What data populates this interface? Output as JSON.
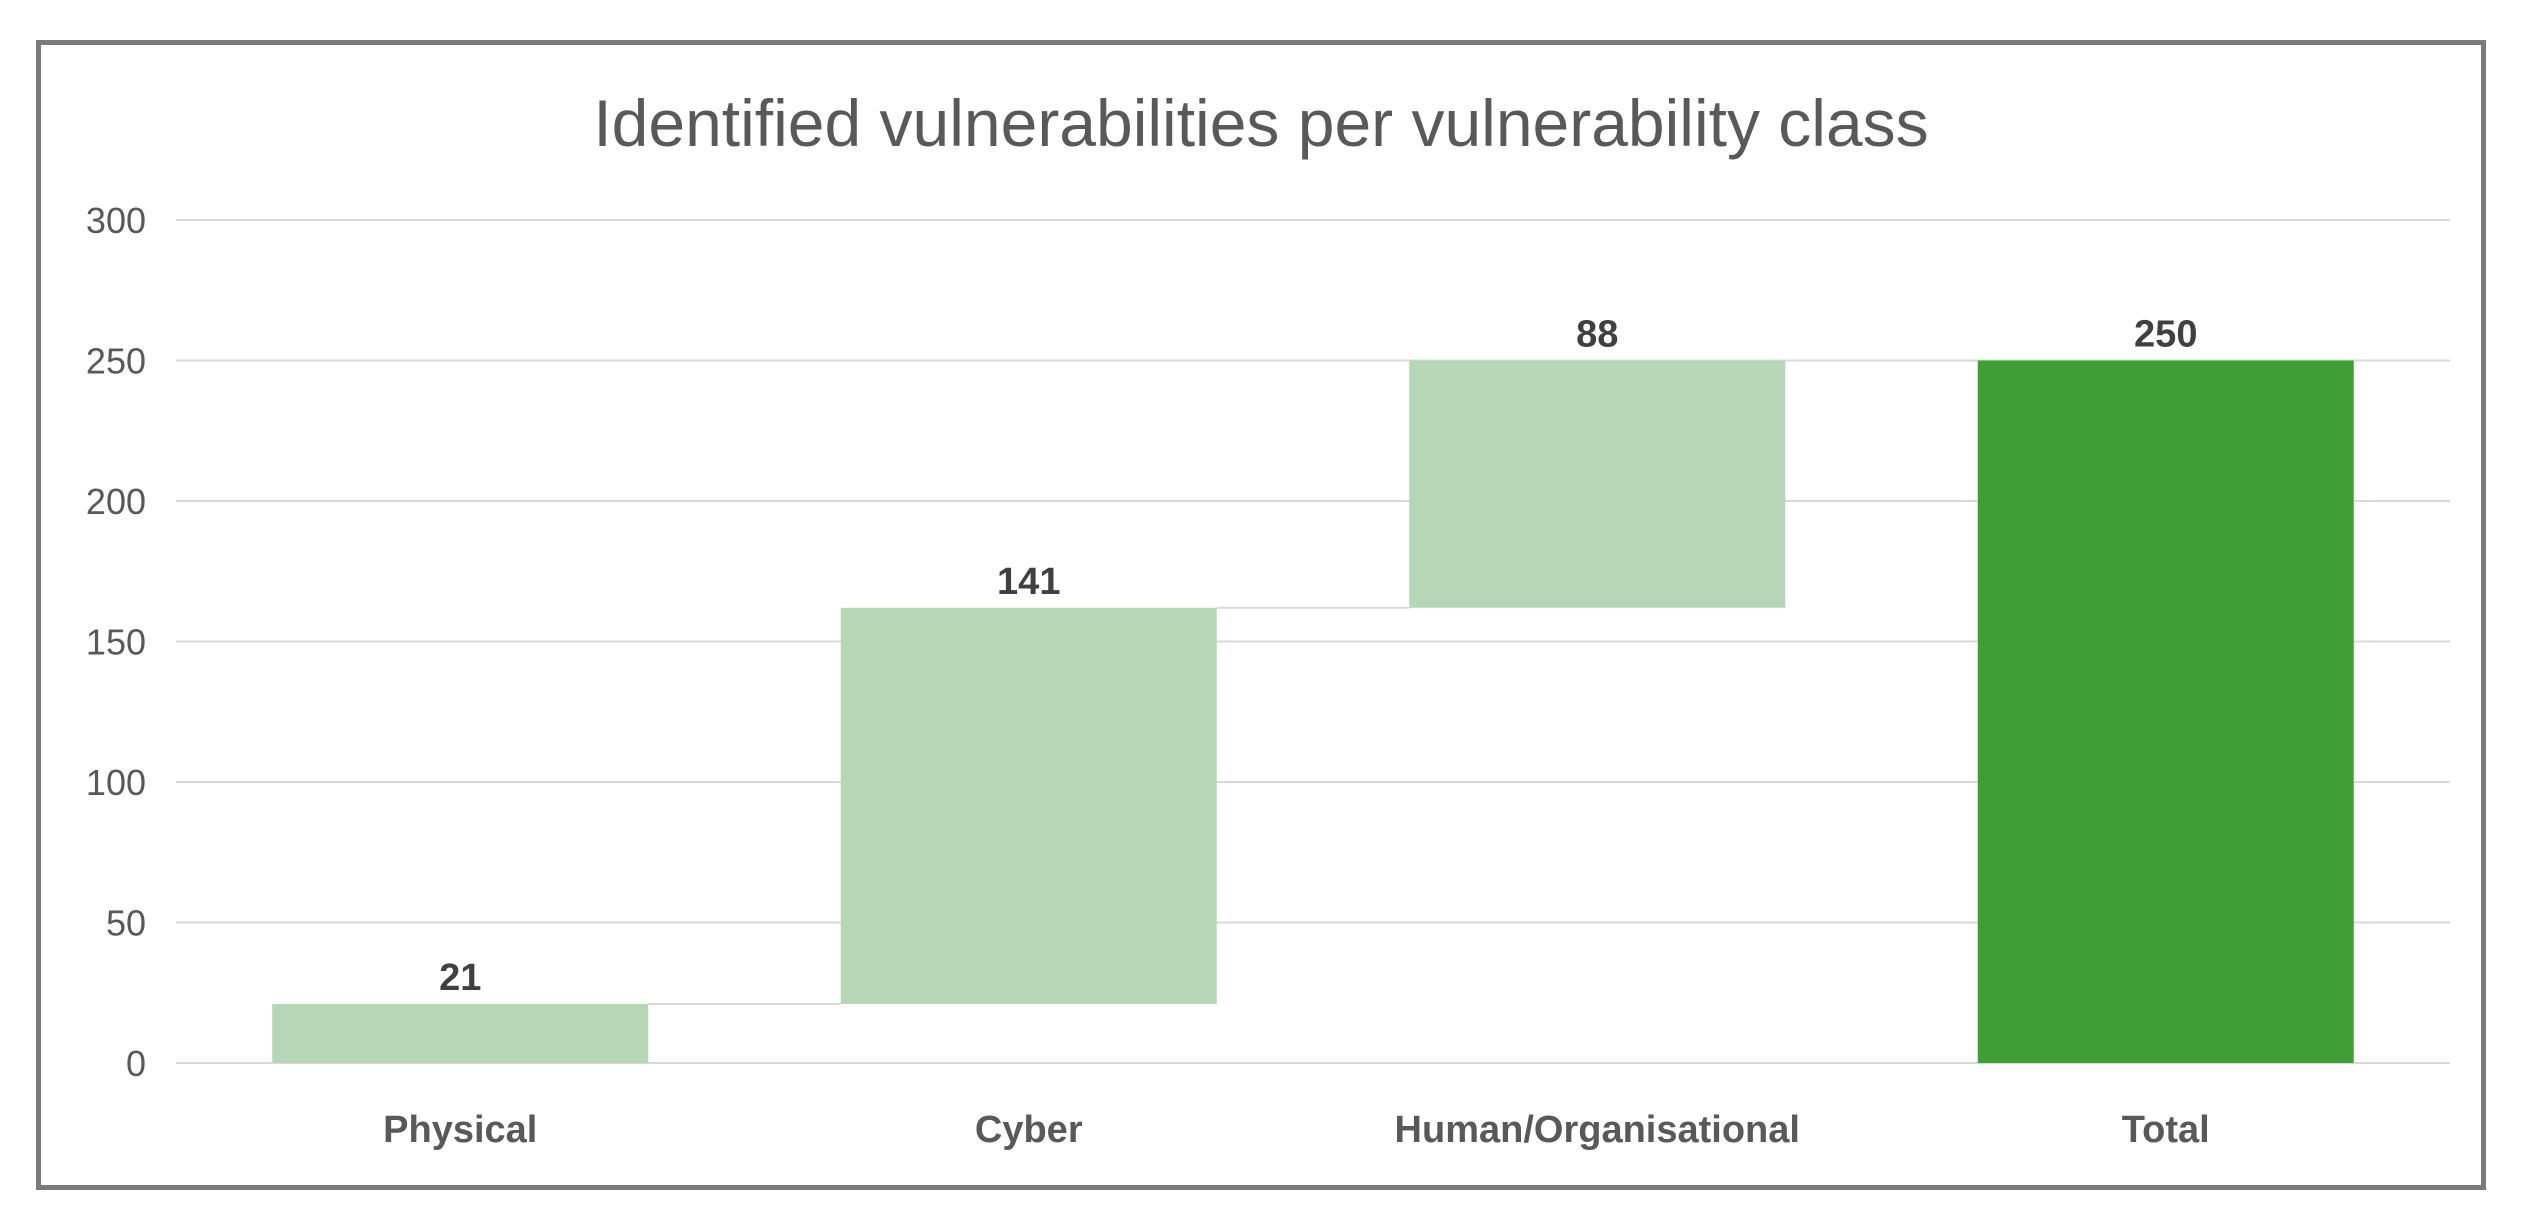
{
  "chart_data": {
    "type": "bar",
    "subtype": "waterfall",
    "title": "Identified vulnerabilities per vulnerability class",
    "xlabel": "",
    "ylabel": "",
    "ylim": [
      0,
      300
    ],
    "yticks": [
      0,
      50,
      100,
      150,
      200,
      250,
      300
    ],
    "grid": true,
    "legend": "none",
    "categories": [
      "Physical",
      "Cyber",
      "Human/Organisational",
      "Total"
    ],
    "values": [
      21,
      141,
      88,
      250
    ],
    "kinds": [
      "increase",
      "increase",
      "increase",
      "total"
    ],
    "colors": {
      "increase": "#b6d7b5",
      "total": "#3f9e36"
    }
  }
}
